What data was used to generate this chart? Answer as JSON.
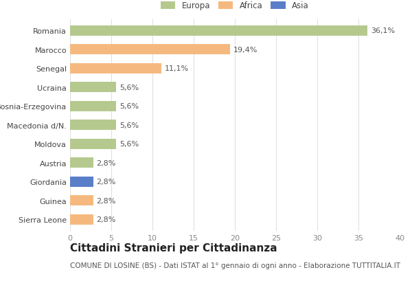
{
  "categories": [
    "Romania",
    "Marocco",
    "Senegal",
    "Ucraina",
    "Bosnia-Erzegovina",
    "Macedonia d/N.",
    "Moldova",
    "Austria",
    "Giordania",
    "Guinea",
    "Sierra Leone"
  ],
  "values": [
    36.1,
    19.4,
    11.1,
    5.6,
    5.6,
    5.6,
    5.6,
    2.8,
    2.8,
    2.8,
    2.8
  ],
  "labels": [
    "36,1%",
    "19,4%",
    "11,1%",
    "5,6%",
    "5,6%",
    "5,6%",
    "5,6%",
    "2,8%",
    "2,8%",
    "2,8%",
    "2,8%"
  ],
  "continents": [
    "Europa",
    "Africa",
    "Africa",
    "Europa",
    "Europa",
    "Europa",
    "Europa",
    "Europa",
    "Asia",
    "Africa",
    "Africa"
  ],
  "colors": {
    "Europa": "#b5c98e",
    "Africa": "#f5b97f",
    "Asia": "#5b7ec9"
  },
  "legend_labels": [
    "Europa",
    "Africa",
    "Asia"
  ],
  "legend_colors": [
    "#b5c98e",
    "#f5b97f",
    "#5b7ec9"
  ],
  "xlim": [
    0,
    40
  ],
  "xticks": [
    0,
    5,
    10,
    15,
    20,
    25,
    30,
    35,
    40
  ],
  "title": "Cittadini Stranieri per Cittadinanza",
  "subtitle": "COMUNE DI LOSINE (BS) - Dati ISTAT al 1° gennaio di ogni anno - Elaborazione TUTTITALIA.IT",
  "bg_color": "#ffffff",
  "bar_height": 0.55,
  "label_fontsize": 8,
  "tick_fontsize": 8,
  "title_fontsize": 11,
  "subtitle_fontsize": 7.5,
  "grid_color": "#e0e0e0"
}
